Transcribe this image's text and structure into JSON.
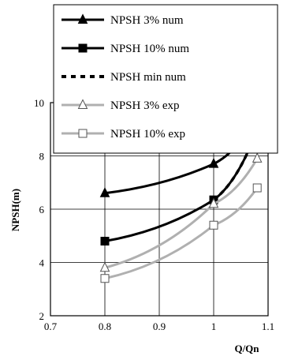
{
  "chart_data": {
    "type": "line",
    "xlabel": "Q/Qn",
    "ylabel": "NPSH(m)",
    "xlim": [
      0.7,
      1.1
    ],
    "ylim": [
      2,
      10
    ],
    "x_ticks": [
      0.7,
      0.8,
      0.9,
      1,
      1.1
    ],
    "x_tick_labels": [
      "0.7",
      "0.8",
      "0.9",
      "1",
      "1.1"
    ],
    "y_ticks": [
      2,
      4,
      6,
      8,
      10
    ],
    "y_tick_labels": [
      "2",
      "4",
      "6",
      "8",
      "10"
    ],
    "grid": true,
    "legend_position": "top-left",
    "series": [
      {
        "name": "NPSH 3% num",
        "x": [
          0.8,
          1.0,
          1.08
        ],
        "y": [
          6.6,
          7.7,
          9.5
        ],
        "color": "#000000",
        "line": "solid",
        "marker": "triangle-filled"
      },
      {
        "name": "NPSH 10% num",
        "x": [
          0.8,
          1.0,
          1.08
        ],
        "y": [
          4.8,
          6.35,
          9.0
        ],
        "color": "#000000",
        "line": "solid",
        "marker": "square-filled"
      },
      {
        "name": "NPSH min num",
        "x": [
          1.0,
          1.08
        ],
        "y": [
          6.35,
          9.0
        ],
        "color": "#000000",
        "line": "dashed",
        "marker": "none"
      },
      {
        "name": "NPSH 3% exp",
        "x": [
          0.8,
          1.0,
          1.08
        ],
        "y": [
          3.8,
          6.2,
          7.9
        ],
        "color": "#b0b0b0",
        "line": "solid",
        "marker": "triangle-open"
      },
      {
        "name": "NPSH 10% exp",
        "x": [
          0.8,
          1.0,
          1.08
        ],
        "y": [
          3.4,
          5.4,
          6.8
        ],
        "color": "#b0b0b0",
        "line": "solid",
        "marker": "square-open"
      }
    ]
  }
}
